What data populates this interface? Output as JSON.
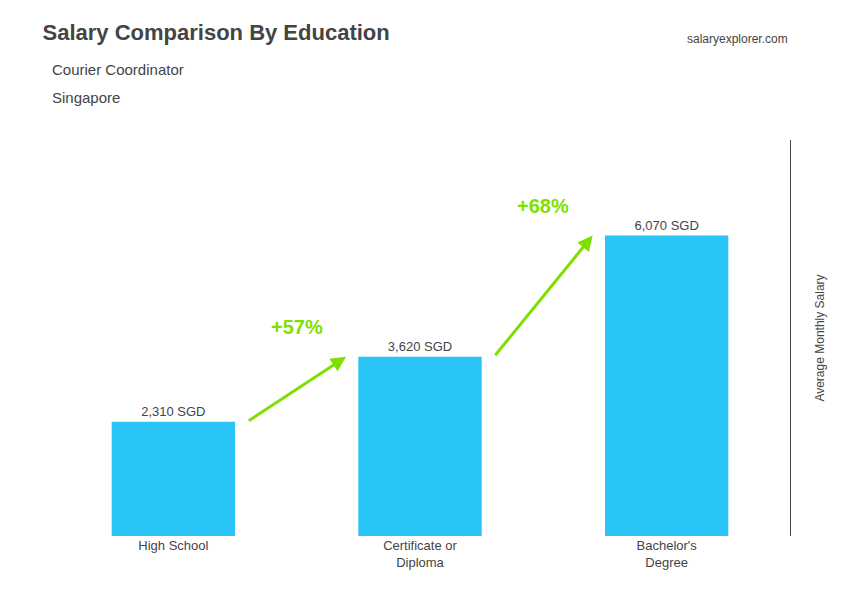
{
  "chart_data": {
    "type": "bar",
    "title": "Salary Comparison By Education",
    "subtitle": "Courier Coordinator",
    "annotations": [
      "Singapore",
      "salaryexplorer.com"
    ],
    "ylabel": "Average Monthly Salary",
    "categories": [
      "High School",
      "Certificate or\nDiploma",
      "Bachelor's\nDegree"
    ],
    "values": [
      2310,
      3620,
      6070
    ],
    "value_labels": [
      "2,310 SGD",
      "3,620 SGD",
      "6,070 SGD"
    ],
    "data_labels": true,
    "color": "#29C5F6",
    "ylim": [
      0,
      8000
    ],
    "tick_labels": "x",
    "grid": false,
    "changes": [
      {
        "from": "High School",
        "to": "Certificate or\nDiploma",
        "value": 57,
        "label": "+57%",
        "color": "#7FE000"
      },
      {
        "from": "Certificate or\nDiploma",
        "to": "Bachelor's\nDegree",
        "value": 68,
        "label": "+68%",
        "color": "#7FE000"
      }
    ]
  }
}
